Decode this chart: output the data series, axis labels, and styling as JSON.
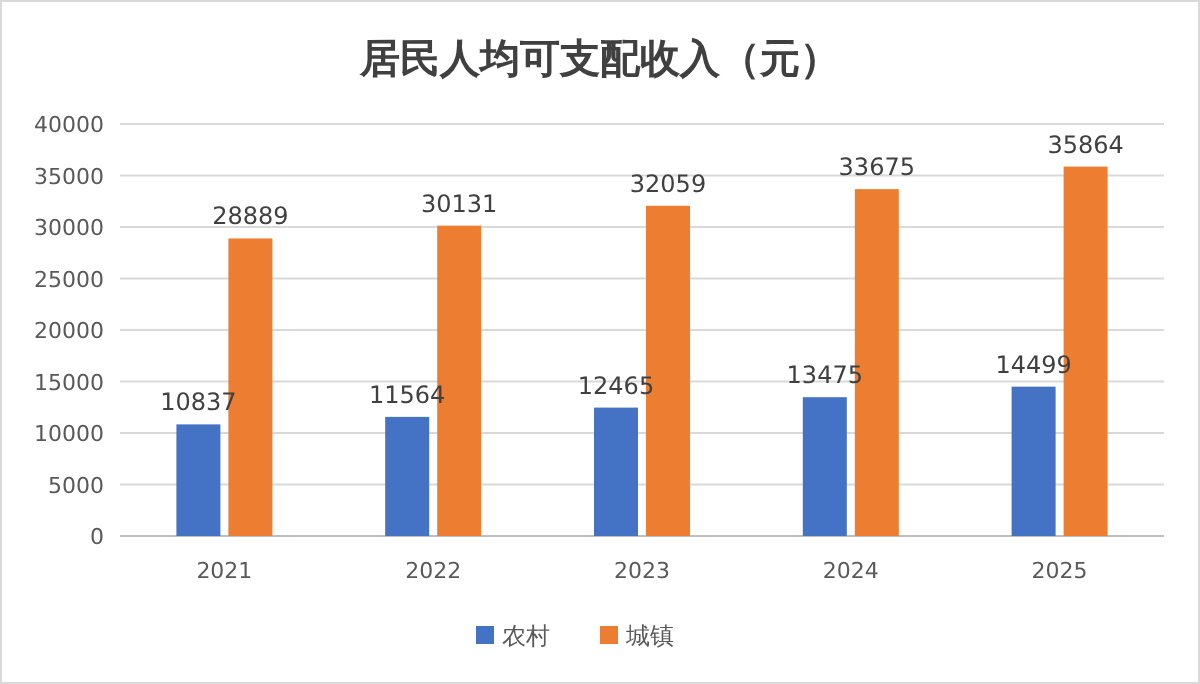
{
  "chart_data": {
    "type": "bar",
    "title": "居民人均可支配收入（元）",
    "categories": [
      "2021",
      "2022",
      "2023",
      "2024",
      "2025"
    ],
    "series": [
      {
        "name": "农村",
        "color": "#4472c4",
        "values": [
          10837,
          11564,
          12465,
          13475,
          14499
        ]
      },
      {
        "name": "城镇",
        "color": "#ed7d31",
        "values": [
          28889,
          30131,
          32059,
          33675,
          35864
        ]
      }
    ],
    "ylim": [
      0,
      40000
    ],
    "yticks": [
      0,
      5000,
      10000,
      15000,
      20000,
      25000,
      30000,
      35000,
      40000
    ],
    "grid": "y",
    "legend": "bottom",
    "data_labels": true
  }
}
